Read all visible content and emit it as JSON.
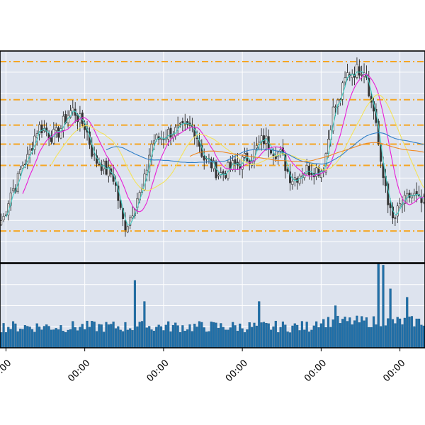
{
  "chart_data": {
    "type": "candlestick-with-volume",
    "grid": true,
    "plot_background": "#dde3ee",
    "colors": {
      "candle_body": "#333333",
      "candle_wick": "#111111",
      "volume": "#1f6fa8",
      "support_resistance": "#f5a623",
      "ma_fast": "#3ec9c1",
      "ma_mid": "#e81ed6",
      "ma_slow": "#f5e35a",
      "ma_long": "#2f7fc9",
      "ma_longest": "#f08a24"
    },
    "price": {
      "ylim": [
        0,
        100
      ],
      "levels": [
        95,
        77,
        65,
        56,
        46,
        15
      ],
      "anchors": [
        {
          "i": 0,
          "v": 20
        },
        {
          "i": 5,
          "v": 35
        },
        {
          "i": 10,
          "v": 48
        },
        {
          "i": 16,
          "v": 64
        },
        {
          "i": 22,
          "v": 60
        },
        {
          "i": 30,
          "v": 72
        },
        {
          "i": 34,
          "v": 66
        },
        {
          "i": 40,
          "v": 48
        },
        {
          "i": 46,
          "v": 42
        },
        {
          "i": 52,
          "v": 18
        },
        {
          "i": 58,
          "v": 32
        },
        {
          "i": 64,
          "v": 58
        },
        {
          "i": 72,
          "v": 62
        },
        {
          "i": 80,
          "v": 64
        },
        {
          "i": 86,
          "v": 48
        },
        {
          "i": 92,
          "v": 42
        },
        {
          "i": 98,
          "v": 46
        },
        {
          "i": 104,
          "v": 50
        },
        {
          "i": 110,
          "v": 58
        },
        {
          "i": 116,
          "v": 52
        },
        {
          "i": 122,
          "v": 40
        },
        {
          "i": 128,
          "v": 44
        },
        {
          "i": 134,
          "v": 44
        },
        {
          "i": 140,
          "v": 74
        },
        {
          "i": 146,
          "v": 90
        },
        {
          "i": 152,
          "v": 92
        },
        {
          "i": 156,
          "v": 72
        },
        {
          "i": 160,
          "v": 40
        },
        {
          "i": 164,
          "v": 20
        },
        {
          "i": 168,
          "v": 28
        },
        {
          "i": 172,
          "v": 32
        },
        {
          "i": 176,
          "v": 28
        }
      ]
    },
    "volume": {
      "ylim": [
        0,
        100
      ],
      "baseline": 18,
      "spikes": [
        {
          "i": 56,
          "v": 80
        },
        {
          "i": 60,
          "v": 55
        },
        {
          "i": 108,
          "v": 55
        },
        {
          "i": 140,
          "v": 50
        },
        {
          "i": 158,
          "v": 100
        },
        {
          "i": 160,
          "v": 98
        },
        {
          "i": 163,
          "v": 70
        },
        {
          "i": 170,
          "v": 60
        }
      ]
    },
    "x": {
      "count": 178,
      "tick_labels": [
        "00:00",
        "00:00",
        "00:00",
        "00:00",
        "00:00",
        "00:00"
      ],
      "tick_index": [
        0,
        33,
        66,
        99,
        132,
        165
      ]
    }
  }
}
